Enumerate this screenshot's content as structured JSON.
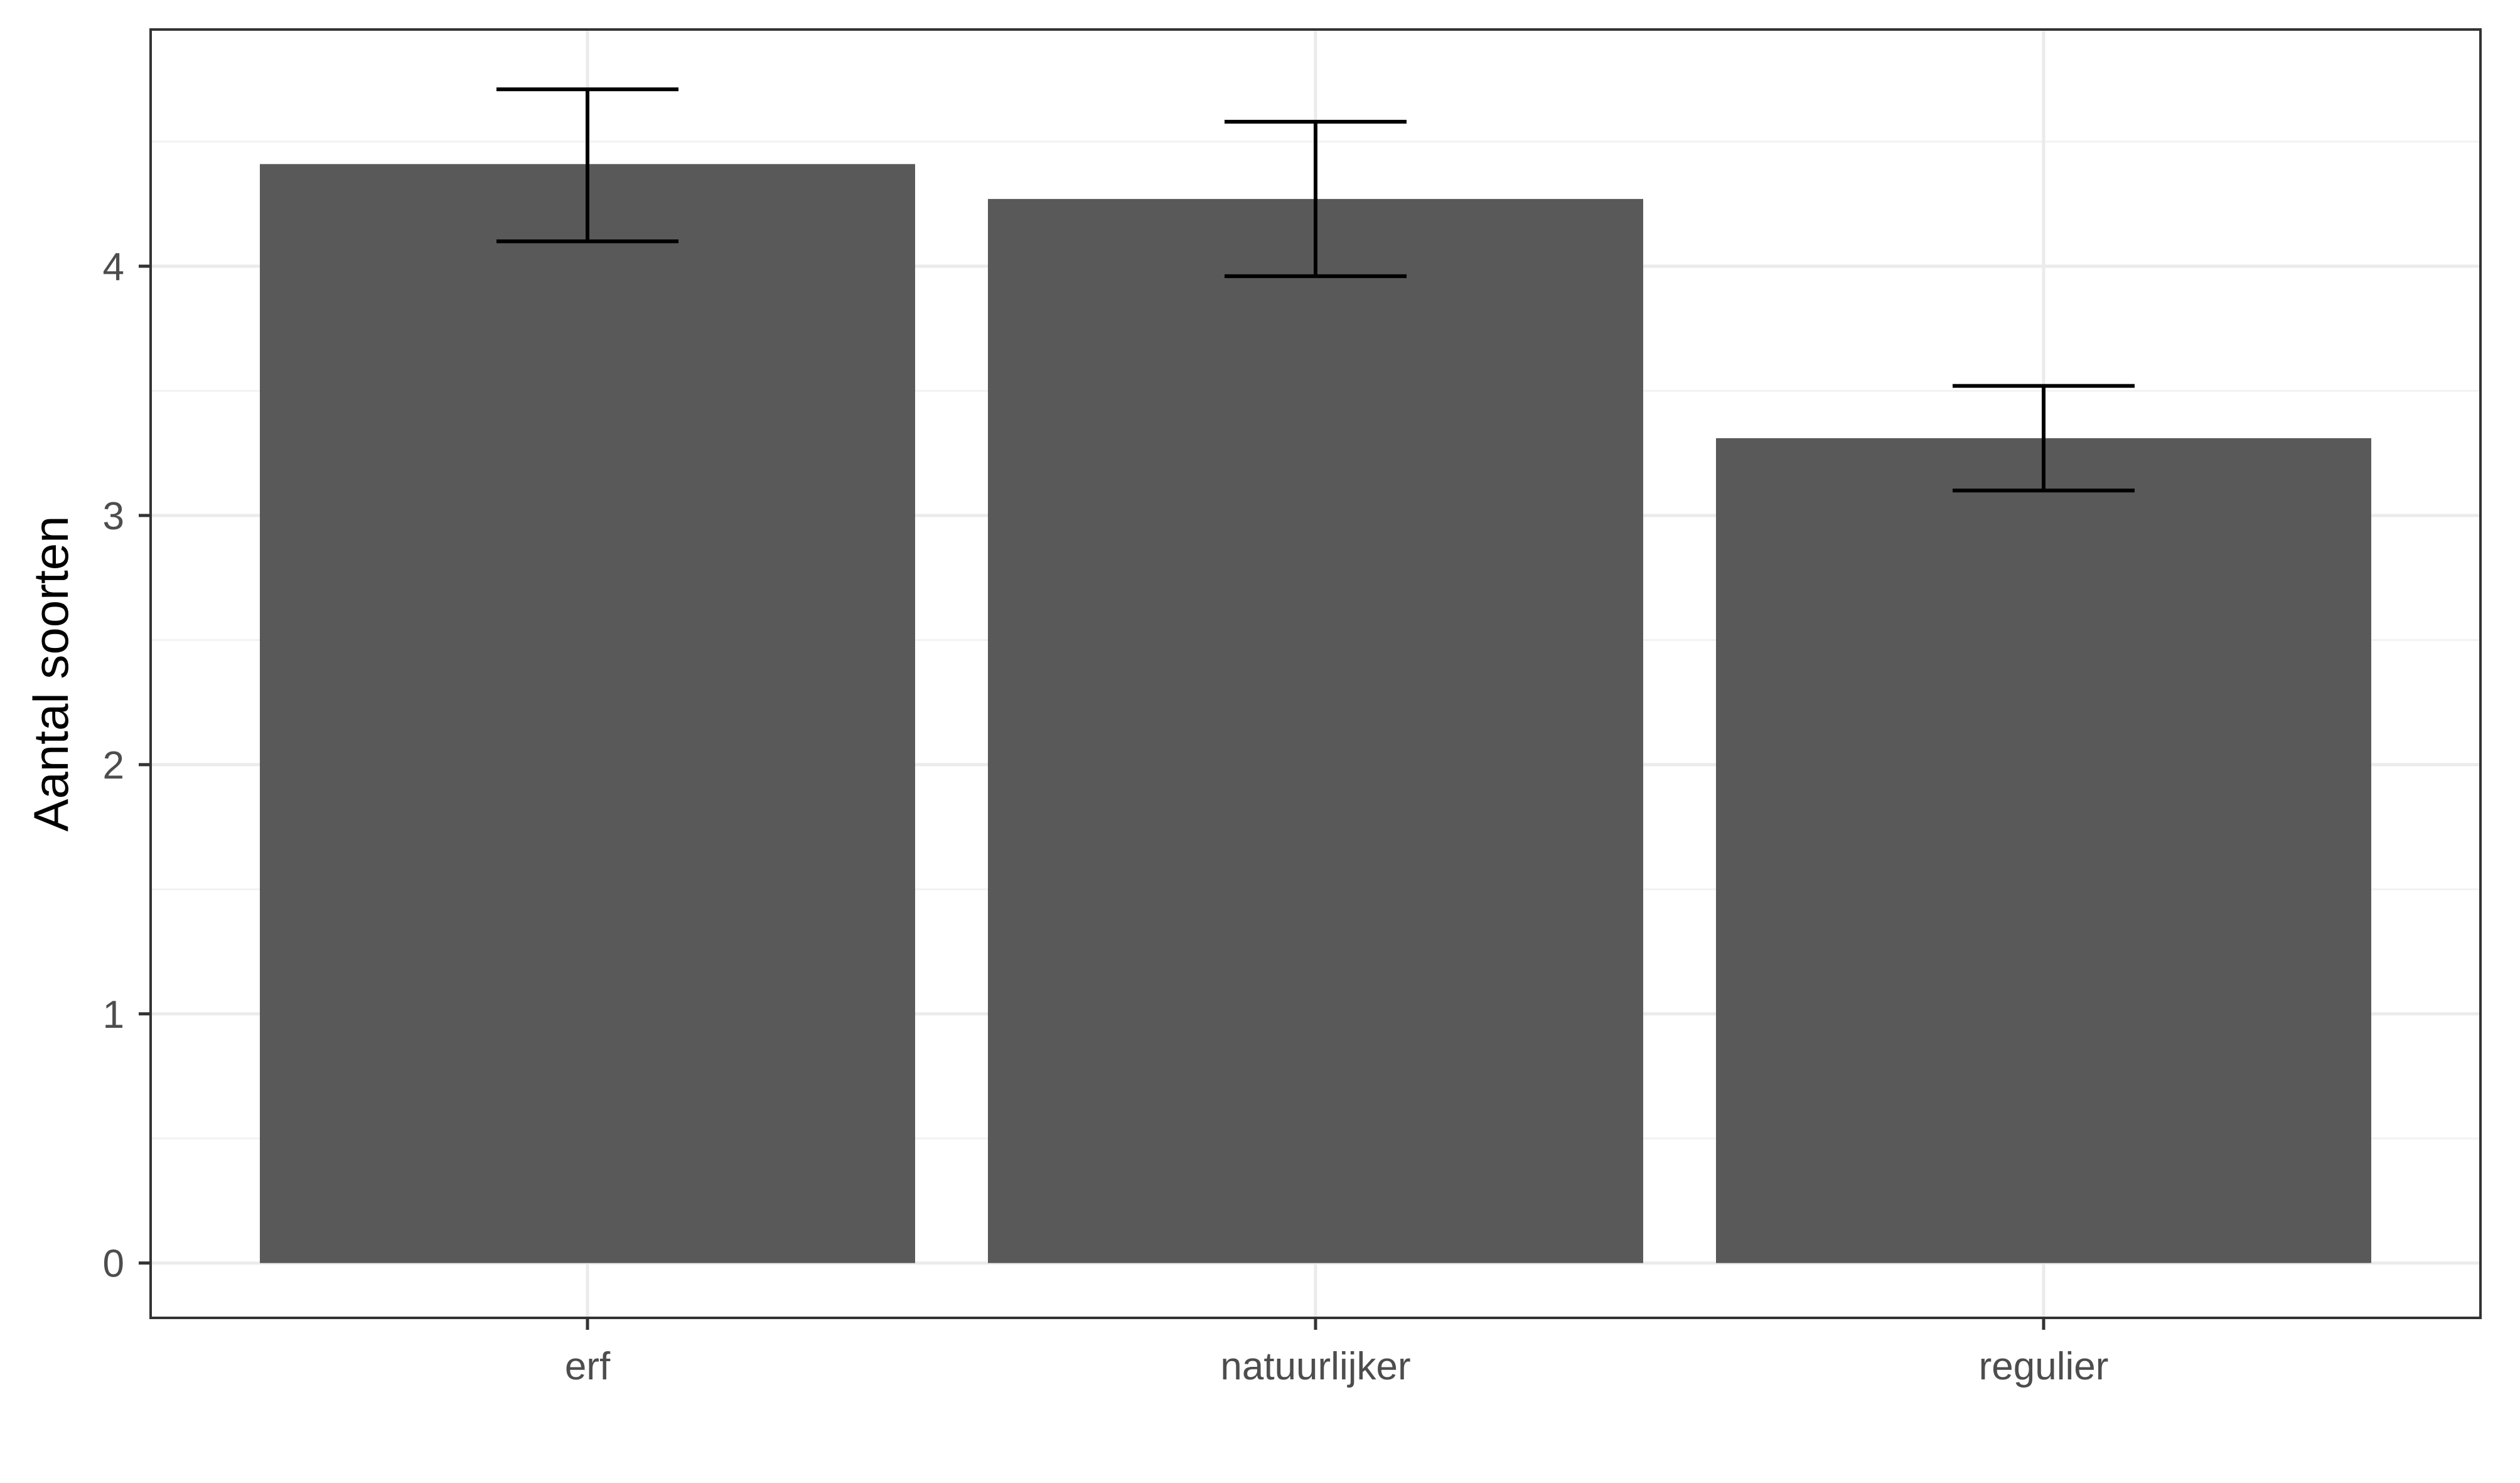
{
  "chart_data": {
    "type": "bar",
    "categories": [
      "erf",
      "natuurlijker",
      "regulier"
    ],
    "values": [
      4.41,
      4.27,
      3.31
    ],
    "error_bars": [
      {
        "lower": 4.1,
        "upper": 4.71
      },
      {
        "lower": 3.96,
        "upper": 4.58
      },
      {
        "lower": 3.1,
        "upper": 3.52
      }
    ],
    "title": "",
    "xlabel": "",
    "ylabel": "Aantal soorten",
    "ylim": [
      -0.22,
      4.95
    ],
    "yticks": [
      0,
      1,
      2,
      3,
      4
    ],
    "grid": true,
    "legend": "none",
    "colors": {
      "bar": "#595959",
      "error_bar": "#000000",
      "grid_major": "#ebebeb",
      "grid_minor": "#f2f2f2",
      "panel_border": "#333333",
      "tick_label": "#4d4d4d"
    }
  }
}
